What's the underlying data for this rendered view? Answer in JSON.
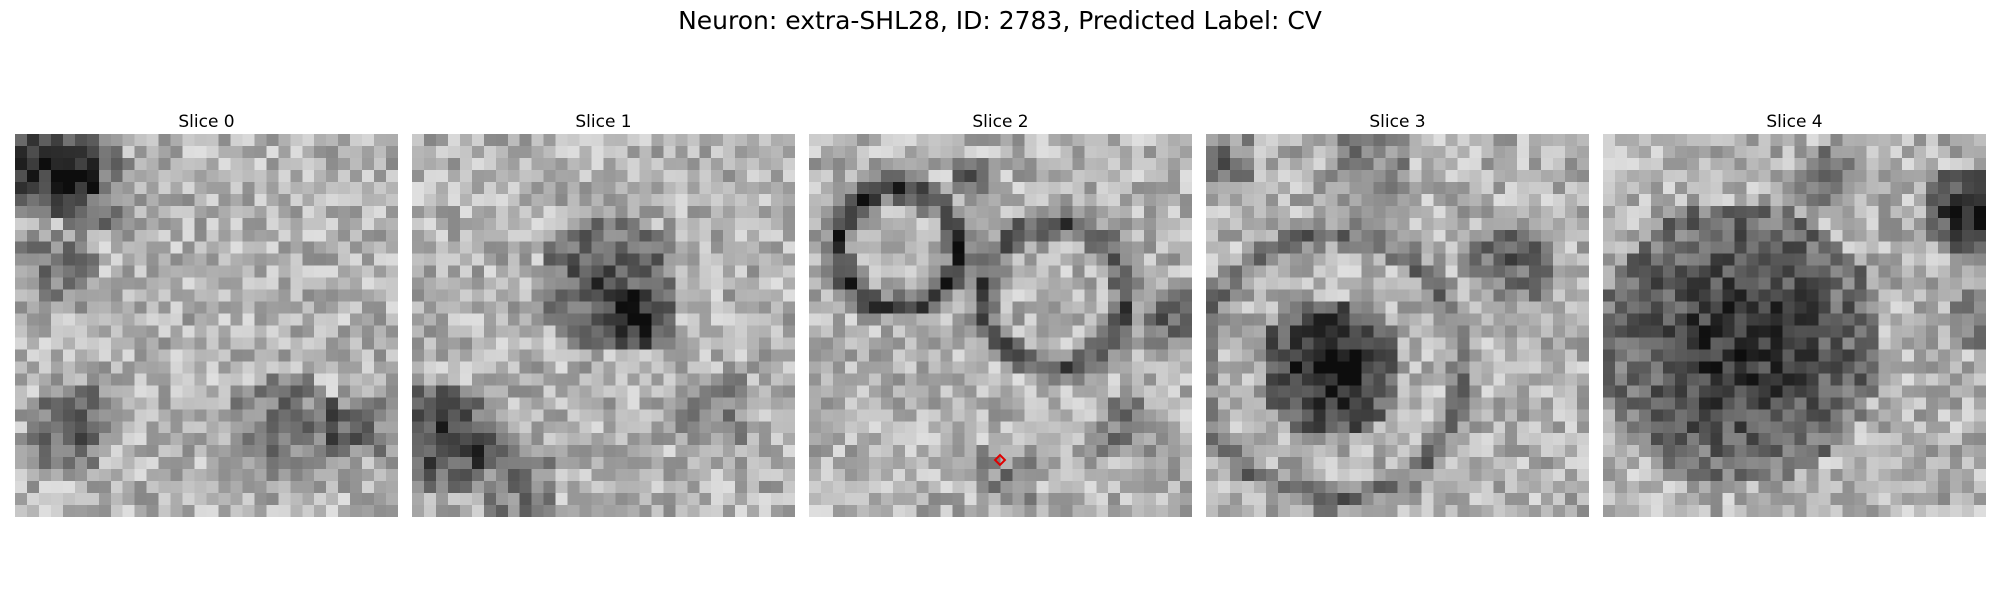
{
  "figure": {
    "title": "Neuron: extra-SHL28, ID: 2783, Predicted Label: CV"
  },
  "panels": [
    {
      "title": "Slice 0"
    },
    {
      "title": "Slice 1"
    },
    {
      "title": "Slice 2"
    },
    {
      "title": "Slice 3"
    },
    {
      "title": "Slice 4"
    }
  ],
  "marker": {
    "panel": 2,
    "color": "#e00000",
    "shape": "diamond"
  }
}
